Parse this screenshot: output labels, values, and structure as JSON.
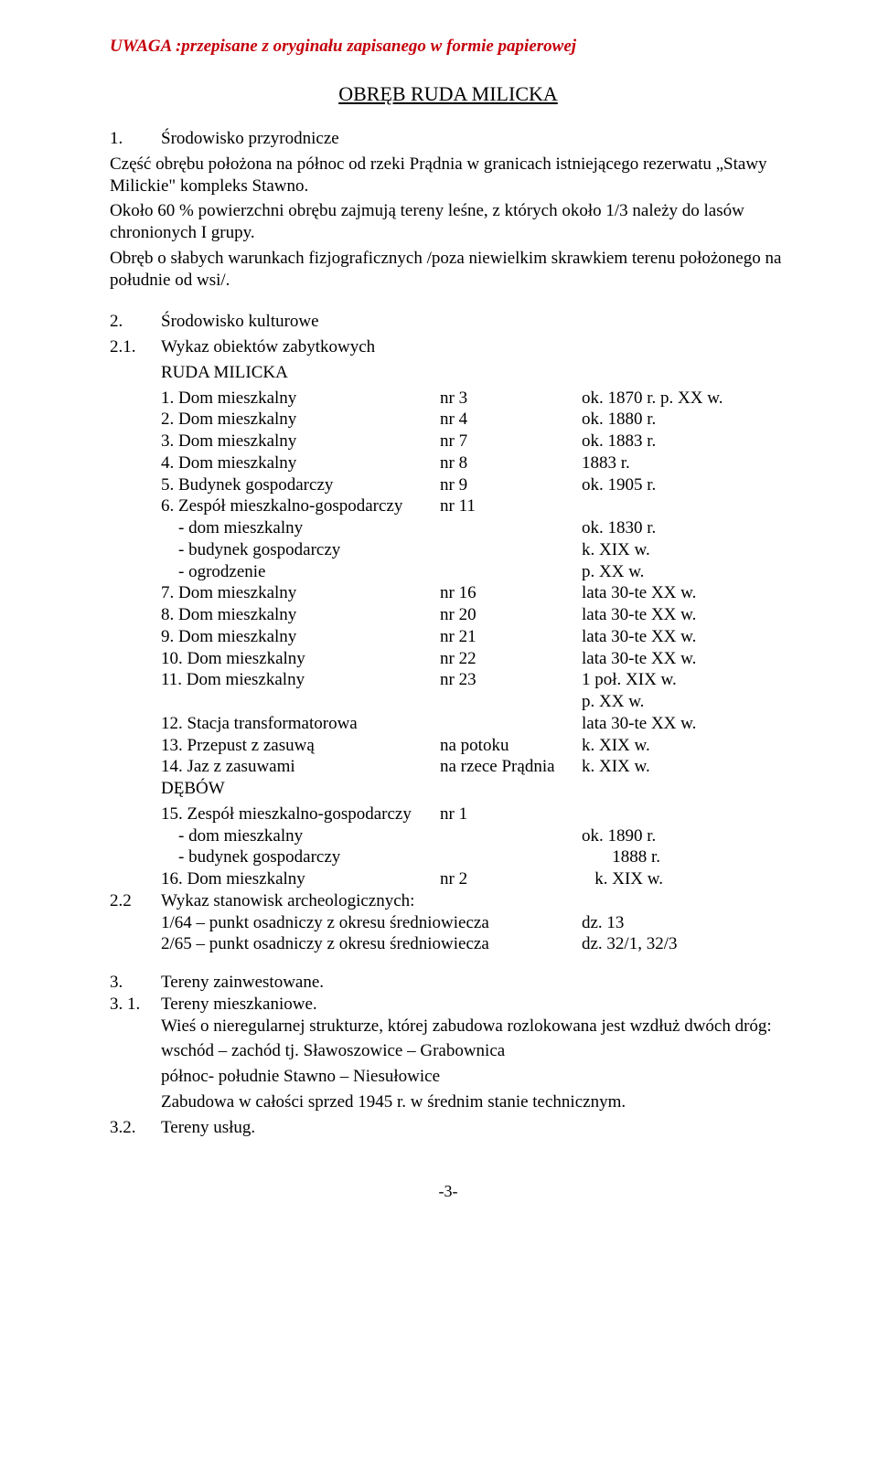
{
  "header_note": "UWAGA :przepisane z oryginału zapisanego w  formie papierowej",
  "title": "OBRĘB RUDA MILICKA",
  "s1": {
    "num": "1.",
    "label": "Środowisko przyrodnicze",
    "p1": "Część obrębu położona na północ od rzeki Prądnia w granicach istniejącego rezerwatu „Stawy Milickie\" kompleks Stawno.",
    "p2": "Około 60 % powierzchni obrębu zajmują tereny leśne, z których około 1/3 należy do lasów chronionych I grupy.",
    "p3": "Obręb o słabych warunkach fizjograficznych /poza niewielkim skrawkiem terenu położonego na południe od wsi/."
  },
  "s2": {
    "num": "2.",
    "label": "Środowisko kulturowe",
    "s21_num": "2.1.",
    "s21_label": "Wykaz obiektów zabytkowych",
    "group1": "RUDA MILICKA",
    "items": [
      {
        "c1": "1. Dom mieszkalny",
        "c2": "nr 3",
        "c3": "ok. 1870 r. p. XX w."
      },
      {
        "c1": "2. Dom mieszkalny",
        "c2": "nr 4",
        "c3": "ok. 1880 r."
      },
      {
        "c1": "3. Dom mieszkalny",
        "c2": "nr 7",
        "c3": "ok. 1883 r."
      },
      {
        "c1": "4. Dom mieszkalny",
        "c2": "nr 8",
        "c3": "1883 r."
      },
      {
        "c1": "5. Budynek gospodarczy",
        "c2": "nr 9",
        "c3": "ok. 1905 r."
      },
      {
        "c1": "6. Zespół mieszkalno-gospodarczy",
        "c2": "nr 11",
        "c3": ""
      },
      {
        "c1": "    - dom mieszkalny",
        "c2": "",
        "c3": "ok. 1830 r."
      },
      {
        "c1": "    - budynek gospodarczy",
        "c2": "",
        "c3": "k. XIX w."
      },
      {
        "c1": "    - ogrodzenie",
        "c2": "",
        "c3": "p. XX w."
      },
      {
        "c1": "7. Dom mieszkalny",
        "c2": "nr 16",
        "c3": "lata 30-te XX w."
      },
      {
        "c1": "8. Dom mieszkalny",
        "c2": "nr 20",
        "c3": "lata 30-te XX w."
      },
      {
        "c1": "9. Dom mieszkalny",
        "c2": "nr 21",
        "c3": "lata 30-te XX w."
      },
      {
        "c1": "10. Dom mieszkalny",
        "c2": "nr 22",
        "c3": "lata 30-te XX w."
      },
      {
        "c1": "11. Dom mieszkalny",
        "c2": "nr 23",
        "c3": "1 poł. XIX w."
      },
      {
        "c1": "",
        "c2": "",
        "c3": "p. XX w."
      },
      {
        "c1": "12. Stacja transformatorowa",
        "c2": "",
        "c3": "lata 30-te XX w."
      },
      {
        "c1": "13. Przepust z zasuwą",
        "c2": "na potoku",
        "c3": "k. XIX w."
      },
      {
        "c1": "14. Jaz z zasuwami",
        "c2": "na rzece Prądnia",
        "c3": "k. XIX w."
      }
    ],
    "group2": "DĘBÓW",
    "items2": [
      {
        "c1": "15. Zespół mieszkalno-gospodarczy",
        "c2": "nr 1",
        "c3": ""
      },
      {
        "c1": "    - dom mieszkalny",
        "c2": "",
        "c3": "ok. 1890 r."
      },
      {
        "c1": "    - budynek gospodarczy",
        "c2": "",
        "c3": "       1888 r."
      },
      {
        "c1": "16. Dom mieszkalny",
        "c2": "nr 2",
        "c3": "   k. XIX w."
      }
    ],
    "s22_num": "2.2",
    "s22_label": "Wykaz stanowisk archeologicznych:",
    "arch": [
      {
        "c1": "1/64 – punkt osadniczy z okresu średniowiecza",
        "c2": "dz. 13"
      },
      {
        "c1": "2/65 – punkt osadniczy z okresu średniowiecza",
        "c2": "dz. 32/1, 32/3"
      }
    ]
  },
  "s3": {
    "r1": {
      "num": "3.",
      "label": "Tereny zainwestowane."
    },
    "r2": {
      "num": "3. 1.",
      "label": "Tereny mieszkaniowe."
    },
    "p1": "Wieś o nieregularnej strukturze, której zabudowa rozlokowana jest wzdłuż dwóch dróg:",
    "p2": "wschód – zachód tj. Sławoszowice – Grabownica",
    "p3": "północ- południe Stawno – Niesułowice",
    "p4": "Zabudowa w całości sprzed 1945 r. w średnim stanie technicznym.",
    "r3": {
      "num": "3.2.",
      "label": "Tereny usług."
    }
  },
  "page_number": "-3-"
}
